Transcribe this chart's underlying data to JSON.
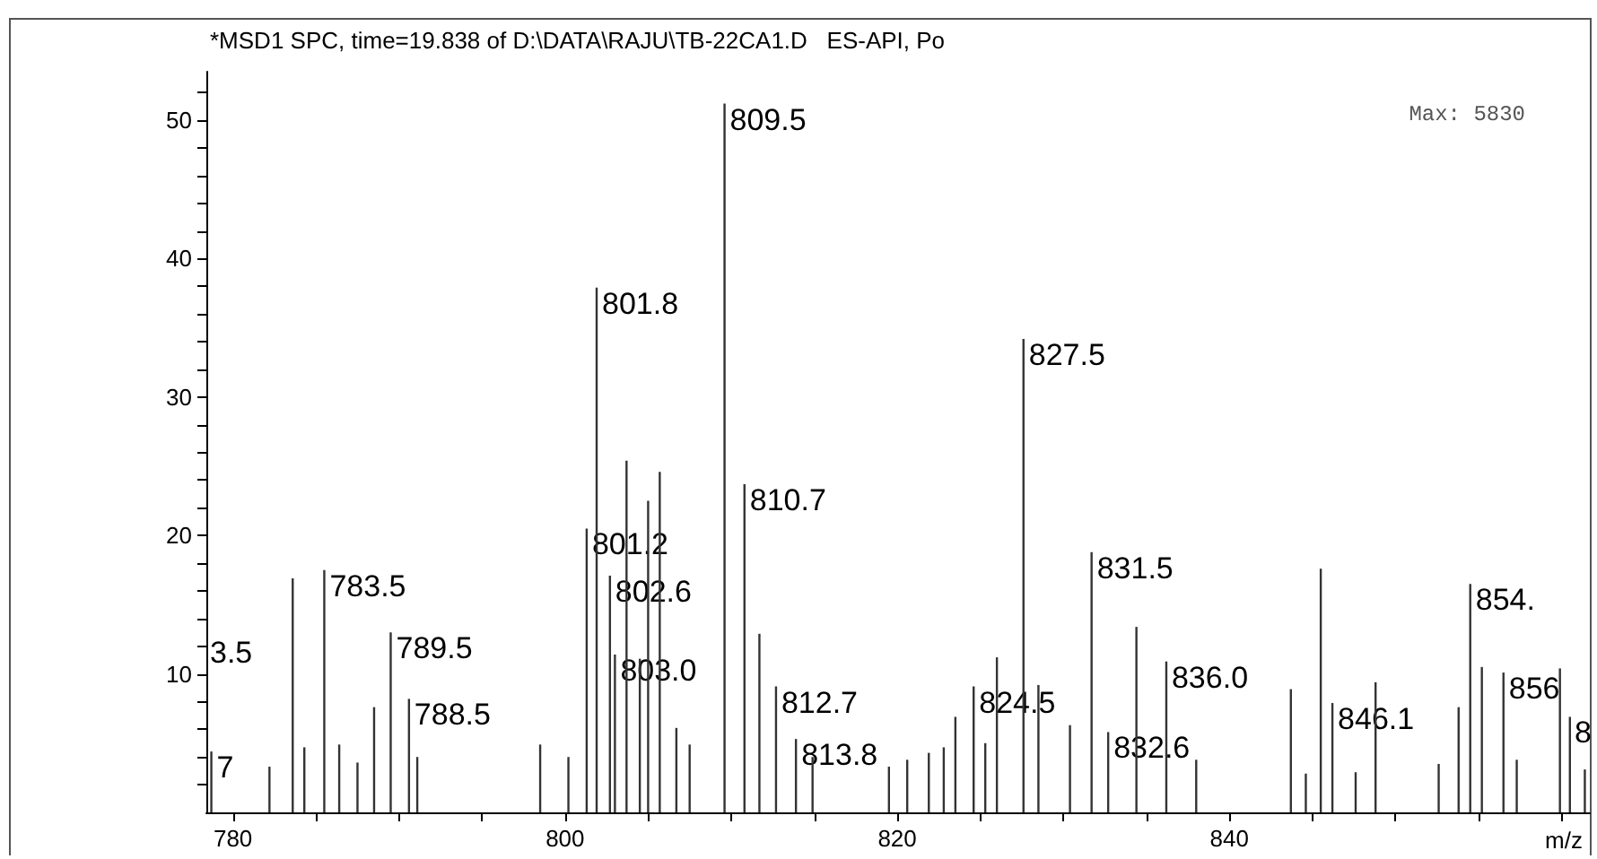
{
  "chart_data": {
    "type": "bar",
    "title": "*MSD1 SPC, time=19.838 of D:\\DATA\\RAJU\\TB-22CA1.D   ES-API, Po",
    "xlabel": "m/z",
    "x": [
      778.7,
      782.2,
      783.6,
      784.3,
      785.5,
      786.4,
      787.5,
      788.5,
      789.5,
      790.6,
      791.1,
      798.5,
      800.2,
      801.3,
      801.9,
      802.7,
      803.0,
      803.7,
      804.5,
      805.0,
      805.7,
      806.7,
      807.5,
      809.6,
      810.8,
      811.7,
      812.7,
      813.9,
      814.9,
      819.5,
      820.6,
      821.9,
      822.8,
      823.5,
      824.6,
      825.3,
      826.0,
      827.6,
      828.5,
      830.4,
      831.7,
      832.7,
      834.4,
      836.2,
      838.0,
      843.7,
      844.6,
      845.5,
      846.2,
      847.6,
      848.8,
      852.6,
      853.8,
      854.5,
      855.2,
      856.5,
      857.3,
      859.9,
      860.5,
      861.4
    ],
    "values": [
      4.4,
      3.3,
      16.9,
      4.7,
      17.5,
      4.9,
      3.6,
      7.6,
      13.0,
      8.2,
      4.0,
      4.9,
      4.0,
      20.5,
      37.9,
      17.1,
      11.4,
      25.4,
      11.1,
      22.5,
      24.6,
      6.1,
      4.9,
      51.2,
      23.7,
      12.9,
      9.1,
      5.3,
      4.0,
      3.3,
      3.8,
      4.3,
      4.7,
      6.9,
      9.1,
      5.0,
      11.2,
      34.2,
      9.2,
      6.3,
      18.8,
      5.8,
      13.4,
      10.9,
      3.8,
      8.9,
      2.8,
      17.6,
      7.9,
      2.9,
      9.4,
      3.5,
      7.6,
      16.5,
      10.5,
      10.1,
      3.8,
      10.4,
      6.9,
      3.1
    ],
    "color": "#333333",
    "xlim": [
      778.4,
      861.7
    ],
    "xticks": [
      780,
      {
        "value": 785,
        "label": null
      },
      {
        "value": 790,
        "label": null
      },
      {
        "value": 795,
        "label": null
      },
      800,
      {
        "value": 805,
        "label": null
      },
      {
        "value": 810,
        "label": null
      },
      {
        "value": 815,
        "label": null
      },
      820,
      {
        "value": 825,
        "label": null
      },
      {
        "value": 830,
        "label": null
      },
      {
        "value": 835,
        "label": null
      },
      840,
      {
        "value": 845,
        "label": null
      },
      {
        "value": 850,
        "label": null
      },
      {
        "value": 855,
        "label": null
      },
      {
        "value": 860,
        "label": null
      }
    ],
    "ylim": [
      0,
      53.5
    ],
    "yticks": [
      {
        "value": 2,
        "label": null
      },
      {
        "value": 4,
        "label": null
      },
      {
        "value": 6,
        "label": null
      },
      {
        "value": 8,
        "label": null
      },
      10,
      {
        "value": 12,
        "label": null
      },
      {
        "value": 14,
        "label": null
      },
      {
        "value": 16,
        "label": null
      },
      {
        "value": 18,
        "label": null
      },
      20,
      {
        "value": 22,
        "label": null
      },
      {
        "value": 24,
        "label": null
      },
      {
        "value": 26,
        "label": null
      },
      {
        "value": 28,
        "label": null
      },
      30,
      {
        "value": 32,
        "label": null
      },
      {
        "value": 34,
        "label": null
      },
      {
        "value": 36,
        "label": null
      },
      {
        "value": 38,
        "label": null
      },
      40,
      {
        "value": 42,
        "label": null
      },
      {
        "value": 44,
        "label": null
      },
      {
        "value": 46,
        "label": null
      },
      {
        "value": 48,
        "label": null
      },
      50,
      {
        "value": 52,
        "label": null
      }
    ],
    "grid": false,
    "annotations": [
      "Max: 5830",
      "3.5",
      {
        "text": "7",
        "x": 778.7,
        "y": 4.4
      },
      {
        "text": "783.5",
        "x": 785.5,
        "y": 17.5
      },
      {
        "text": "789.5",
        "x": 789.5,
        "y": 13.0
      },
      {
        "text": "788.5",
        "x": 790.6,
        "y": 8.2
      },
      {
        "text": "801.8",
        "x": 801.9,
        "y": 37.9
      },
      {
        "text": "809.5",
        "x": 809.6,
        "y": 51.2
      },
      {
        "text": "801.2",
        "x": 801.3,
        "y": 20.5
      },
      {
        "text": "802.6",
        "x": 802.7,
        "y": 17.1
      },
      {
        "text": "803.0",
        "x": 803.0,
        "y": 11.4
      },
      {
        "text": "810.7",
        "x": 810.8,
        "y": 23.7
      },
      {
        "text": "812.7",
        "x": 812.7,
        "y": 9.1
      },
      {
        "text": "813.8",
        "x": 813.9,
        "y": 5.3
      },
      {
        "text": "824.5",
        "x": 824.6,
        "y": 9.1
      },
      {
        "text": "827.5",
        "x": 827.6,
        "y": 34.2
      },
      {
        "text": "831.5",
        "x": 831.7,
        "y": 18.8
      },
      {
        "text": "832.6",
        "x": 832.7,
        "y": 5.8
      },
      {
        "text": "836.0",
        "x": 836.2,
        "y": 10.9
      },
      {
        "text": "846.1",
        "x": 846.2,
        "y": 7.9
      },
      {
        "text": "854.",
        "x": 854.5,
        "y": 16.5
      },
      {
        "text": "856",
        "x": 856.5,
        "y": 10.1
      },
      {
        "text": "8",
        "x": 860.5,
        "y": 6.9
      }
    ]
  }
}
